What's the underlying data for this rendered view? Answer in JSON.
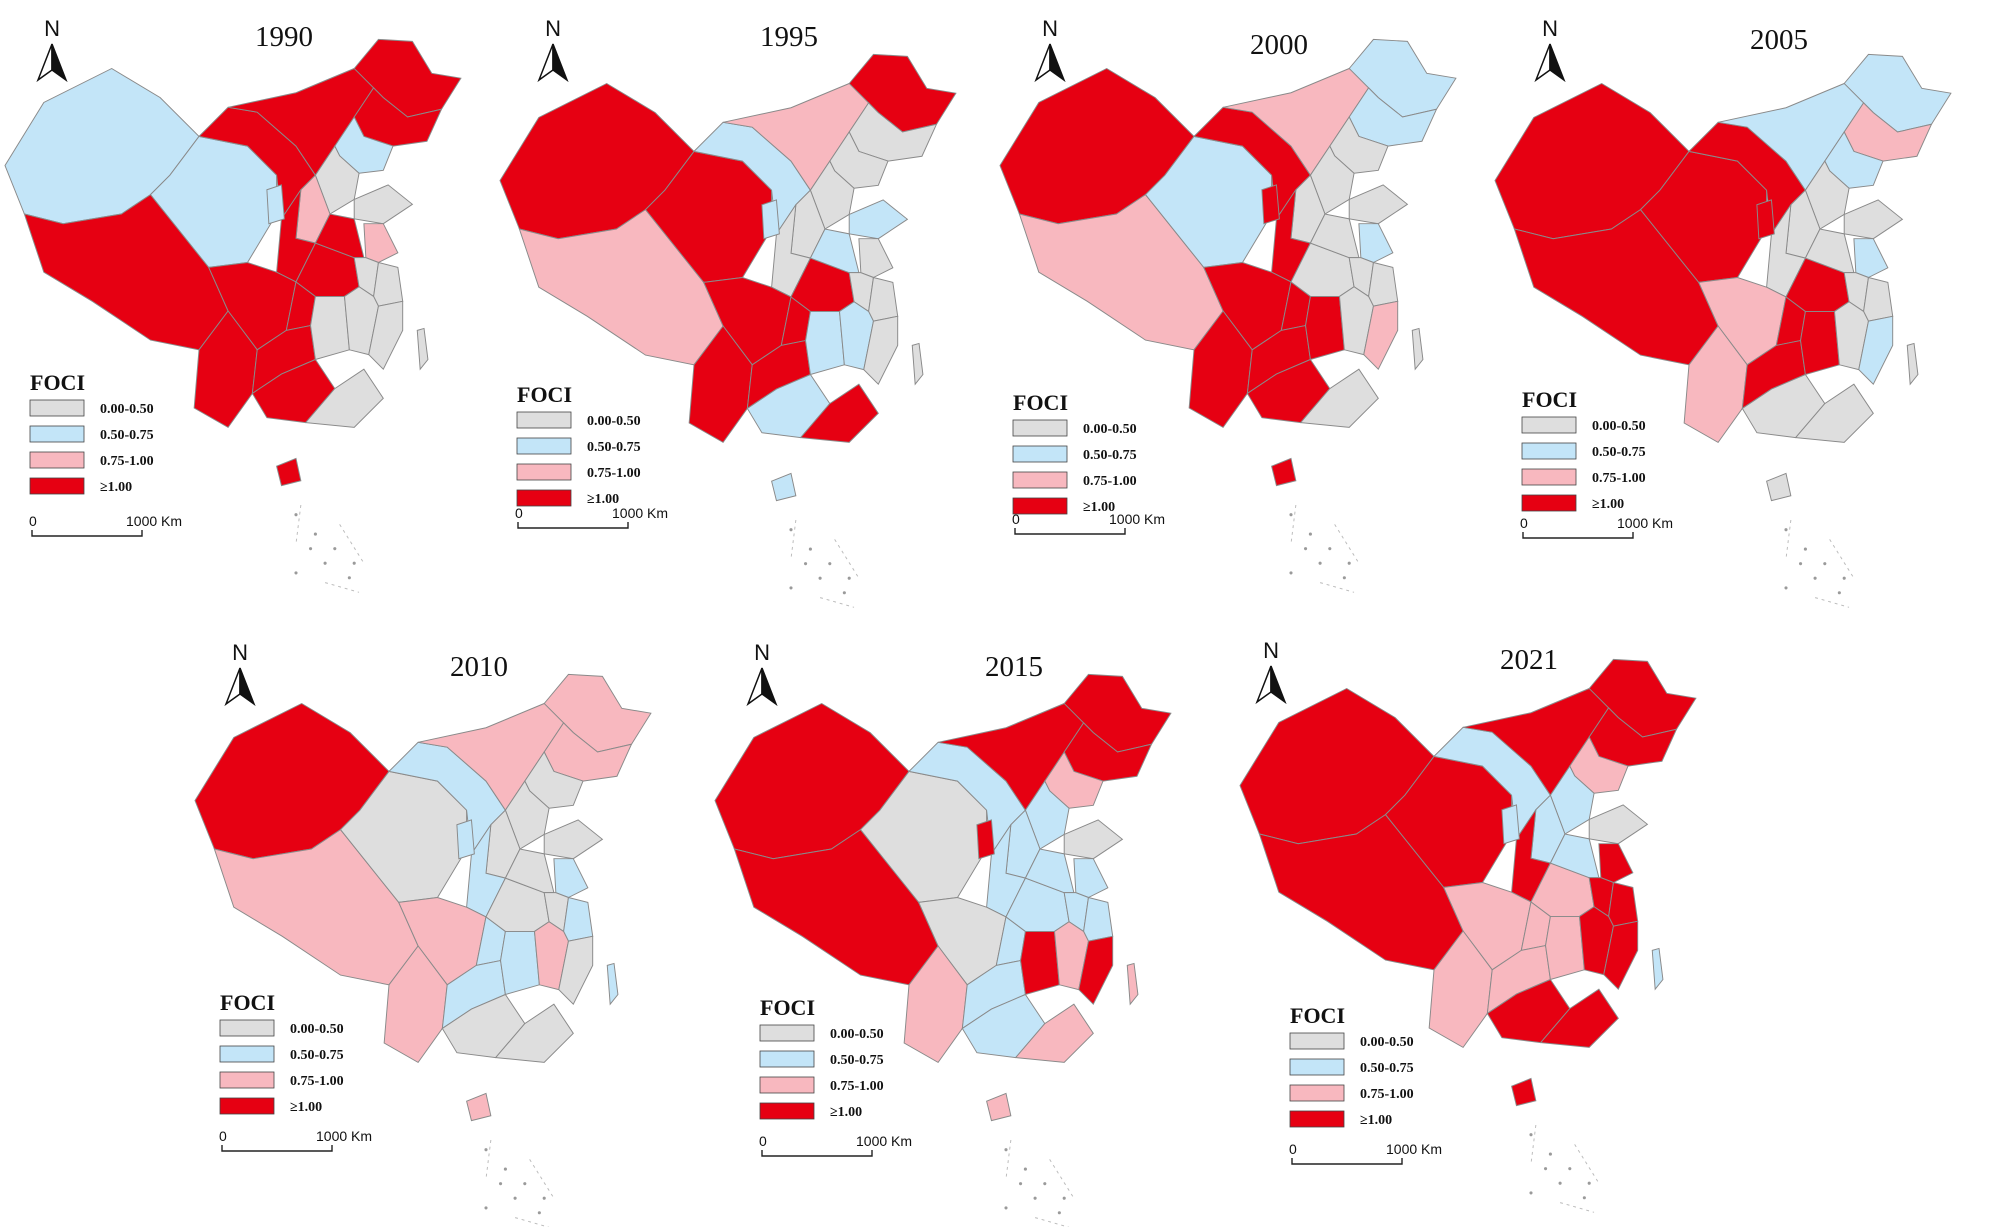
{
  "figure": {
    "legend_title": "FOCI",
    "north_label": "N",
    "scale": {
      "start": "0",
      "end": "1000 Km"
    },
    "classes": [
      {
        "label": "0.00-0.50",
        "color": "#dedede"
      },
      {
        "label": "0.50-0.75",
        "color": "#c3e5f8"
      },
      {
        "label": "0.75-1.00",
        "color": "#f8b8bf"
      },
      {
        "label": "≥1.00",
        "color": "#e60012"
      }
    ]
  },
  "panels": [
    {
      "year": "1990",
      "regions": {
        "xinjiang": 1,
        "tibet": 3,
        "qinghai": 1,
        "gansu": 3,
        "neimenggu": 3,
        "heilongjiang": 3,
        "jilin": 3,
        "liaoning": 1,
        "hebei": 0,
        "shanxi": 2,
        "shaanxi": 3,
        "ningxia": 1,
        "sichuan": 3,
        "chongqing": 3,
        "yunnan": 3,
        "guizhou": 3,
        "guangxi": 3,
        "guangdong": 0,
        "hunan": 0,
        "hubei": 3,
        "henan": 3,
        "shandong": 0,
        "jiangsu": 2,
        "anhui": 0,
        "zhejiang": 0,
        "jiangxi": 0,
        "fujian": 0,
        "hainan": 3,
        "taiwan": 0
      }
    },
    {
      "year": "1995",
      "regions": {
        "xinjiang": 3,
        "tibet": 2,
        "qinghai": 3,
        "gansu": 1,
        "neimenggu": 2,
        "heilongjiang": 3,
        "jilin": 0,
        "liaoning": 0,
        "hebei": 0,
        "shanxi": 0,
        "shaanxi": 0,
        "ningxia": 1,
        "sichuan": 3,
        "chongqing": 3,
        "yunnan": 3,
        "guizhou": 3,
        "guangxi": 1,
        "guangdong": 3,
        "hunan": 1,
        "hubei": 3,
        "henan": 1,
        "shandong": 1,
        "jiangsu": 0,
        "anhui": 0,
        "zhejiang": 0,
        "jiangxi": 1,
        "fujian": 0,
        "hainan": 1,
        "taiwan": 0
      }
    },
    {
      "year": "2000",
      "regions": {
        "xinjiang": 3,
        "tibet": 2,
        "qinghai": 1,
        "gansu": 3,
        "neimenggu": 2,
        "heilongjiang": 1,
        "jilin": 1,
        "liaoning": 0,
        "hebei": 0,
        "shanxi": 0,
        "shaanxi": 3,
        "ningxia": 3,
        "sichuan": 3,
        "chongqing": 3,
        "yunnan": 3,
        "guizhou": 3,
        "guangxi": 3,
        "guangdong": 0,
        "hunan": 3,
        "hubei": 0,
        "henan": 0,
        "shandong": 0,
        "jiangsu": 1,
        "anhui": 0,
        "zhejiang": 0,
        "jiangxi": 0,
        "fujian": 2,
        "hainan": 3,
        "taiwan": 0
      }
    },
    {
      "year": "2005",
      "regions": {
        "xinjiang": 3,
        "tibet": 3,
        "qinghai": 3,
        "gansu": 3,
        "neimenggu": 1,
        "heilongjiang": 1,
        "jilin": 2,
        "liaoning": 1,
        "hebei": 0,
        "shanxi": 0,
        "shaanxi": 0,
        "ningxia": 3,
        "sichuan": 2,
        "chongqing": 3,
        "yunnan": 2,
        "guizhou": 3,
        "guangxi": 0,
        "guangdong": 0,
        "hunan": 3,
        "hubei": 3,
        "henan": 0,
        "shandong": 0,
        "jiangsu": 1,
        "anhui": 0,
        "zhejiang": 0,
        "jiangxi": 0,
        "fujian": 1,
        "hainan": 0,
        "taiwan": 0
      }
    },
    {
      "year": "2010",
      "regions": {
        "xinjiang": 3,
        "tibet": 2,
        "qinghai": 0,
        "gansu": 1,
        "neimenggu": 2,
        "heilongjiang": 2,
        "jilin": 2,
        "liaoning": 0,
        "hebei": 0,
        "shanxi": 0,
        "shaanxi": 1,
        "ningxia": 1,
        "sichuan": 2,
        "chongqing": 1,
        "yunnan": 2,
        "guizhou": 1,
        "guangxi": 0,
        "guangdong": 0,
        "hunan": 1,
        "hubei": 0,
        "henan": 0,
        "shandong": 0,
        "jiangsu": 1,
        "anhui": 0,
        "zhejiang": 1,
        "jiangxi": 2,
        "fujian": 0,
        "hainan": 2,
        "taiwan": 1
      }
    },
    {
      "year": "2015",
      "regions": {
        "xinjiang": 3,
        "tibet": 3,
        "qinghai": 0,
        "gansu": 1,
        "neimenggu": 3,
        "heilongjiang": 3,
        "jilin": 3,
        "liaoning": 2,
        "hebei": 1,
        "shanxi": 1,
        "shaanxi": 1,
        "ningxia": 3,
        "sichuan": 0,
        "chongqing": 1,
        "yunnan": 2,
        "guizhou": 1,
        "guangxi": 1,
        "guangdong": 2,
        "hunan": 3,
        "hubei": 1,
        "henan": 1,
        "shandong": 0,
        "jiangsu": 1,
        "anhui": 1,
        "zhejiang": 1,
        "jiangxi": 2,
        "fujian": 3,
        "hainan": 2,
        "taiwan": 2
      }
    },
    {
      "year": "2021",
      "regions": {
        "xinjiang": 3,
        "tibet": 3,
        "qinghai": 3,
        "gansu": 1,
        "neimenggu": 3,
        "heilongjiang": 3,
        "jilin": 3,
        "liaoning": 2,
        "hebei": 1,
        "shanxi": 1,
        "shaanxi": 3,
        "ningxia": 1,
        "sichuan": 2,
        "chongqing": 2,
        "yunnan": 2,
        "guizhou": 2,
        "guangxi": 3,
        "guangdong": 3,
        "hunan": 2,
        "hubei": 2,
        "henan": 1,
        "shandong": 0,
        "jiangsu": 3,
        "anhui": 3,
        "zhejiang": 3,
        "jiangxi": 3,
        "fujian": 3,
        "hainan": 3,
        "taiwan": 1
      }
    }
  ]
}
